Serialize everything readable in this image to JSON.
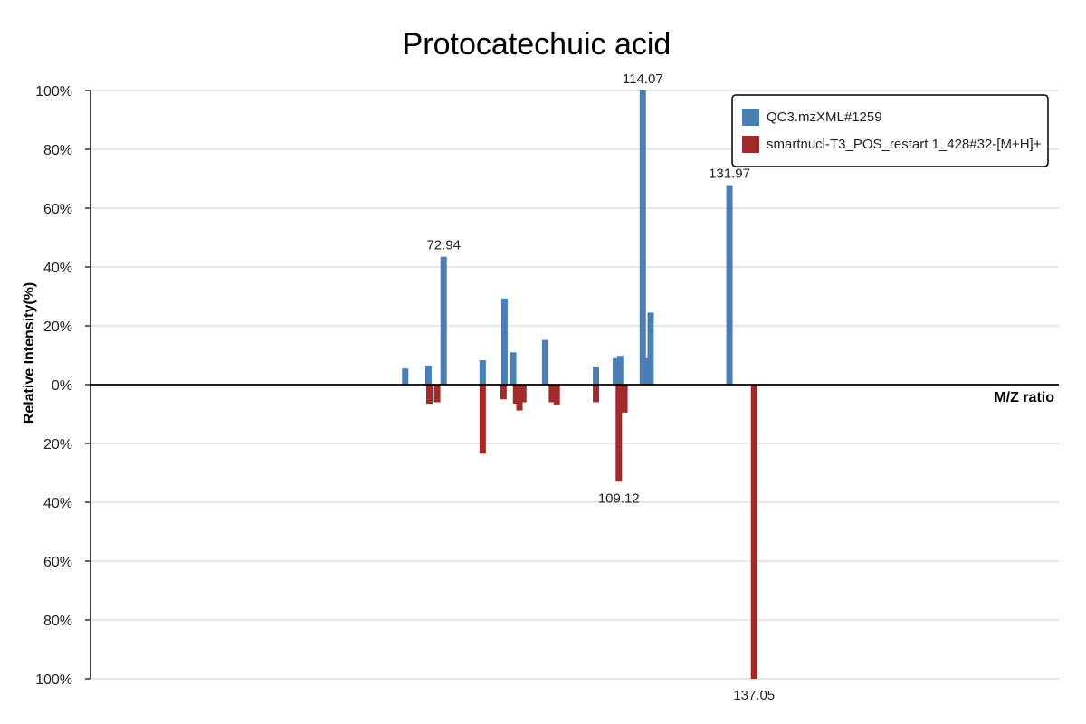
{
  "chart_data": {
    "type": "bar",
    "subtype": "mirror-spectrum",
    "title": "Protocatechuic acid",
    "xlabel": "M/Z ratio",
    "ylabel": "Relative Intensity(%)",
    "ylim": [
      -100,
      100
    ],
    "xlim": [
      0,
      200
    ],
    "y_ticks": [
      {
        "value": 100,
        "label": "100%"
      },
      {
        "value": 80,
        "label": "80%"
      },
      {
        "value": 60,
        "label": "60%"
      },
      {
        "value": 40,
        "label": "40%"
      },
      {
        "value": 20,
        "label": "20%"
      },
      {
        "value": 0,
        "label": "0%"
      },
      {
        "value": -20,
        "label": "20%"
      },
      {
        "value": -40,
        "label": "40%"
      },
      {
        "value": -60,
        "label": "60%"
      },
      {
        "value": -80,
        "label": "80%"
      },
      {
        "value": -100,
        "label": "100%"
      }
    ],
    "grid": true,
    "legend_position": "top-right",
    "series": [
      {
        "name": "QC3.mzXML#1259",
        "color": "#4a7fb5",
        "direction": "up",
        "peaks": [
          {
            "mz": 65.0,
            "intensity": 5.5
          },
          {
            "mz": 69.8,
            "intensity": 6.5
          },
          {
            "mz": 72.94,
            "intensity": 43.5,
            "label": "72.94"
          },
          {
            "mz": 81.0,
            "intensity": 8.3
          },
          {
            "mz": 85.5,
            "intensity": 29.3
          },
          {
            "mz": 87.3,
            "intensity": 11.0
          },
          {
            "mz": 93.9,
            "intensity": 15.2
          },
          {
            "mz": 114.07,
            "intensity": 100,
            "label": "114.07"
          },
          {
            "mz": 104.4,
            "intensity": 6.2
          },
          {
            "mz": 131.97,
            "intensity": 67.8,
            "label": "131.97"
          },
          {
            "mz": 108.5,
            "intensity": 9.0
          },
          {
            "mz": 109.4,
            "intensity": 9.8
          },
          {
            "mz": 114.7,
            "intensity": 9.0
          },
          {
            "mz": 115.7,
            "intensity": 24.5
          }
        ]
      },
      {
        "name": "smartnucl-T3_POS_restart 1_428#32-[M+H]+",
        "color": "#a12a2a",
        "direction": "down",
        "peaks": [
          {
            "mz": 70.0,
            "intensity": 6.5
          },
          {
            "mz": 71.6,
            "intensity": 6.0
          },
          {
            "mz": 81.0,
            "intensity": 23.5
          },
          {
            "mz": 85.3,
            "intensity": 5.0
          },
          {
            "mz": 87.9,
            "intensity": 6.5
          },
          {
            "mz": 88.6,
            "intensity": 8.8
          },
          {
            "mz": 89.4,
            "intensity": 6.0
          },
          {
            "mz": 109.12,
            "intensity": 33.0,
            "label": "109.12"
          },
          {
            "mz": 95.3,
            "intensity": 6.0
          },
          {
            "mz": 96.3,
            "intensity": 7.0
          },
          {
            "mz": 104.4,
            "intensity": 6.0
          },
          {
            "mz": 137.05,
            "intensity": 100,
            "label": "137.05"
          },
          {
            "mz": 110.3,
            "intensity": 9.5
          }
        ]
      }
    ]
  }
}
